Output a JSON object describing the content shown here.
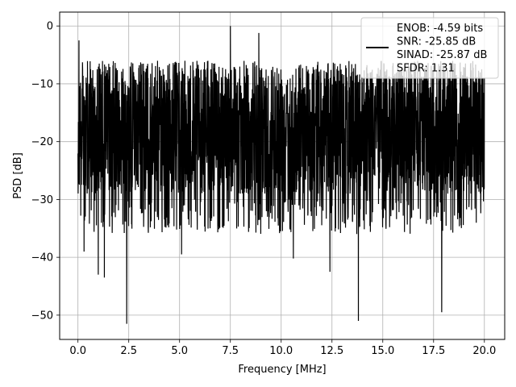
{
  "chart_data": {
    "type": "line",
    "title": "",
    "xlabel": "Frequency [MHz]",
    "ylabel": "PSD [dB]",
    "xlim": [
      -0.9,
      21.0
    ],
    "ylim": [
      -54.2,
      2.4
    ],
    "grid": true,
    "legend_position": "top-right",
    "x_ticks": [
      {
        "value": 0.0,
        "label": "0.0"
      },
      {
        "value": 2.5,
        "label": "2.5"
      },
      {
        "value": 5.0,
        "label": "5.0"
      },
      {
        "value": 7.5,
        "label": "7.5"
      },
      {
        "value": 10.0,
        "label": "10.0"
      },
      {
        "value": 12.5,
        "label": "12.5"
      },
      {
        "value": 15.0,
        "label": "15.0"
      },
      {
        "value": 17.5,
        "label": "17.5"
      },
      {
        "value": 20.0,
        "label": "20.0"
      }
    ],
    "y_ticks": [
      {
        "value": 0,
        "label": "0"
      },
      {
        "value": -10,
        "label": "−10"
      },
      {
        "value": -20,
        "label": "−20"
      },
      {
        "value": -30,
        "label": "−30"
      },
      {
        "value": -40,
        "label": "−40"
      },
      {
        "value": -50,
        "label": "−50"
      }
    ],
    "legend_lines": [
      "ENOB: -4.59 bits",
      "SNR: -25.85 dB",
      "SINAD: -25.87 dB",
      "SFDR: 1.31"
    ],
    "series": [
      {
        "color": "#000000",
        "x_range": [
          0.0,
          20.0
        ],
        "noise_floor_dB": [
          -28,
          -10
        ],
        "envelope_typical_dB": [
          -30,
          -5
        ],
        "peaks": [
          {
            "x": 0.05,
            "y": -2.5
          },
          {
            "x": 0.1,
            "y": -13.5
          },
          {
            "x": 7.5,
            "y": 0.0
          },
          {
            "x": 8.9,
            "y": -1.2
          }
        ],
        "dips": [
          {
            "x": 0.3,
            "y": -39.0
          },
          {
            "x": 1.0,
            "y": -43.0
          },
          {
            "x": 1.3,
            "y": -43.5
          },
          {
            "x": 2.4,
            "y": -51.5
          },
          {
            "x": 5.1,
            "y": -39.5
          },
          {
            "x": 10.6,
            "y": -40.2
          },
          {
            "x": 12.4,
            "y": -42.5
          },
          {
            "x": 13.8,
            "y": -51.0
          },
          {
            "x": 17.9,
            "y": -49.5
          }
        ]
      }
    ]
  }
}
